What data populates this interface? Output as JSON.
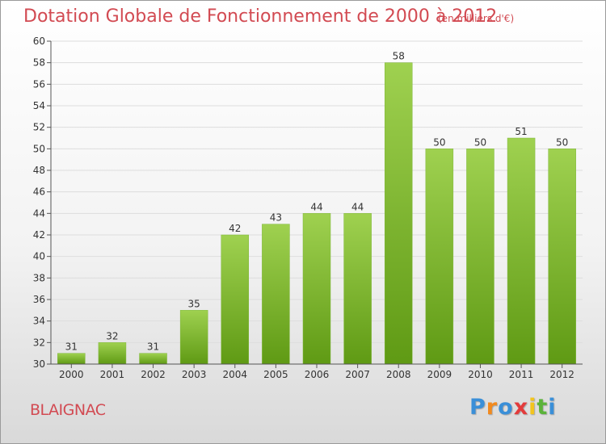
{
  "header": {
    "title": "Dotation Globale de Fonctionnement de 2000 à 2012",
    "subtitle": "(en milliers d'€)"
  },
  "footer": {
    "commune": "BLAIGNAC",
    "brand": "Proxiti",
    "brand_colors": [
      "#3a8fd8",
      "#f28a1e",
      "#3a8fd8",
      "#e33b3b",
      "#f2c41e",
      "#5bb33a",
      "#3a8fd8"
    ]
  },
  "colors": {
    "title": "#d24a52",
    "bar_top": "#9fd150",
    "bar_bottom": "#5f9a14",
    "axis": "#555555",
    "grid": "#dddddd"
  },
  "chart_data": {
    "type": "bar",
    "title": "Dotation Globale de Fonctionnement de 2000 à 2012",
    "subtitle": "(en milliers d'€)",
    "xlabel": "",
    "ylabel": "",
    "categories": [
      "2000",
      "2001",
      "2002",
      "2003",
      "2004",
      "2005",
      "2006",
      "2007",
      "2008",
      "2009",
      "2010",
      "2011",
      "2012"
    ],
    "values": [
      31,
      32,
      31,
      35,
      42,
      43,
      44,
      44,
      58,
      50,
      50,
      51,
      50
    ],
    "ylim": [
      30,
      60
    ],
    "ytick_step": 2,
    "grid": true,
    "data_labels": true,
    "legend": "none"
  }
}
